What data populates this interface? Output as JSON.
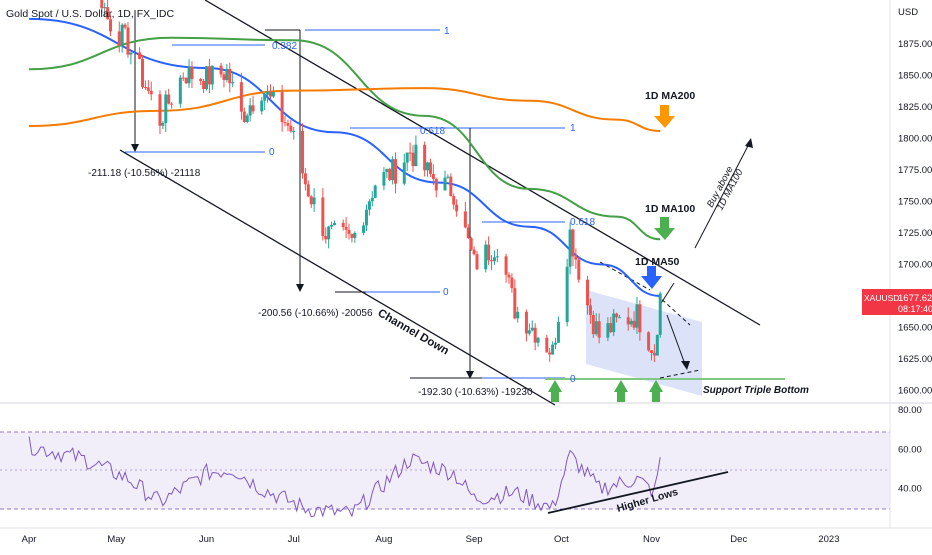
{
  "header": {
    "title": "Gold Spot / U.S. Dollar, 1D, FX_IDC"
  },
  "price_axis": {
    "unit_label": "USD",
    "ticks": [
      "1875.00",
      "1850.00",
      "1825.00",
      "1800.00",
      "1775.00",
      "1750.00",
      "1725.00",
      "1700.00",
      "1675.00",
      "1650.00",
      "1625.00",
      "1600.00"
    ]
  },
  "rsi_axis": {
    "ticks": [
      "80.00",
      "60.00",
      "40.00"
    ]
  },
  "time_axis": {
    "ticks": [
      "Apr",
      "May",
      "Jun",
      "Jul",
      "Aug",
      "Sep",
      "Oct",
      "Nov",
      "Dec",
      "2023"
    ]
  },
  "price_tag": {
    "symbol": "XAUUSD",
    "price": "1677.62",
    "countdown": "08:17:40"
  },
  "fib_labels": {
    "top_one": "1",
    "top_zero": "0",
    "top_382": "0.382",
    "top_measure": "-211.18 (-10.56%) -21118",
    "mid_one": "1",
    "mid_618": "0.618",
    "mid_zero": "0",
    "mid_measure": "-200.56 (-10.66%) -20056",
    "low_one": "1",
    "low_618": "0.618",
    "low_zero": "0",
    "low_measure": "-192.30 (-10.63%) -19230"
  },
  "annotations": {
    "ma200": "1D MA200",
    "ma100": "1D MA100",
    "ma50": "1D MA50",
    "channel_down": "Channel Down",
    "buy_above_line1": "Buy above",
    "buy_above_line2": "1D MA100",
    "support": "Support Triple Bottom",
    "higher_lows": "Higher Lows"
  },
  "colors": {
    "up": "#26a69a",
    "down": "#ef5350",
    "ma50": "#2962ff",
    "ma100": "#43a047",
    "ma200": "#f57c00",
    "rsi": "#7e57c2",
    "fib": "#2962ff",
    "arrow_green": "#4caf50",
    "arrow_blue": "#2962ff",
    "arrow_orange": "#ff9800",
    "price_tag": "#f23645"
  },
  "chart_data": {
    "type": "candlestick",
    "title": "Gold Spot / U.S. Dollar, 1D, FX_IDC",
    "ylabel": "USD",
    "ylim": [
      1590,
      1910
    ],
    "x_range": [
      "2022-03-22",
      "2023-01-22"
    ],
    "close_series_approx": [
      {
        "date": "2022-04-01",
        "close": 1925
      },
      {
        "date": "2022-04-18",
        "close": 1975
      },
      {
        "date": "2022-04-28",
        "close": 1895
      },
      {
        "date": "2022-05-05",
        "close": 1875
      },
      {
        "date": "2022-05-16",
        "close": 1815
      },
      {
        "date": "2022-05-24",
        "close": 1852
      },
      {
        "date": "2022-06-01",
        "close": 1848
      },
      {
        "date": "2022-06-08",
        "close": 1853
      },
      {
        "date": "2022-06-13",
        "close": 1818
      },
      {
        "date": "2022-06-20",
        "close": 1840
      },
      {
        "date": "2022-06-30",
        "close": 1807
      },
      {
        "date": "2022-07-05",
        "close": 1765
      },
      {
        "date": "2022-07-12",
        "close": 1725
      },
      {
        "date": "2022-07-21",
        "close": 1718
      },
      {
        "date": "2022-07-29",
        "close": 1765
      },
      {
        "date": "2022-08-05",
        "close": 1775
      },
      {
        "date": "2022-08-10",
        "close": 1790
      },
      {
        "date": "2022-08-17",
        "close": 1770
      },
      {
        "date": "2022-08-25",
        "close": 1758
      },
      {
        "date": "2022-09-01",
        "close": 1700
      },
      {
        "date": "2022-09-09",
        "close": 1717
      },
      {
        "date": "2022-09-15",
        "close": 1665
      },
      {
        "date": "2022-09-23",
        "close": 1645
      },
      {
        "date": "2022-09-28",
        "close": 1630
      },
      {
        "date": "2022-10-04",
        "close": 1725
      },
      {
        "date": "2022-10-10",
        "close": 1668
      },
      {
        "date": "2022-10-14",
        "close": 1643
      },
      {
        "date": "2022-10-21",
        "close": 1655
      },
      {
        "date": "2022-10-27",
        "close": 1660
      },
      {
        "date": "2022-11-02",
        "close": 1632
      },
      {
        "date": "2022-11-04",
        "close": 1677
      }
    ],
    "moving_averages": [
      {
        "name": "1D MA50",
        "values": [
          {
            "date": "2022-04-01",
            "value": 1895
          },
          {
            "date": "2022-06-01",
            "value": 1856
          },
          {
            "date": "2022-07-15",
            "value": 1805
          },
          {
            "date": "2022-08-20",
            "value": 1765
          },
          {
            "date": "2022-09-20",
            "value": 1730
          },
          {
            "date": "2022-10-15",
            "value": 1700
          },
          {
            "date": "2022-11-04",
            "value": 1675
          }
        ]
      },
      {
        "name": "1D MA100",
        "values": [
          {
            "date": "2022-04-01",
            "value": 1855
          },
          {
            "date": "2022-05-20",
            "value": 1880
          },
          {
            "date": "2022-07-01",
            "value": 1878
          },
          {
            "date": "2022-08-15",
            "value": 1818
          },
          {
            "date": "2022-09-20",
            "value": 1760
          },
          {
            "date": "2022-10-20",
            "value": 1738
          },
          {
            "date": "2022-11-04",
            "value": 1720
          }
        ]
      },
      {
        "name": "1D MA200",
        "values": [
          {
            "date": "2022-04-01",
            "value": 1810
          },
          {
            "date": "2022-05-15",
            "value": 1822
          },
          {
            "date": "2022-07-01",
            "value": 1838
          },
          {
            "date": "2022-08-15",
            "value": 1840
          },
          {
            "date": "2022-09-20",
            "value": 1830
          },
          {
            "date": "2022-10-20",
            "value": 1815
          },
          {
            "date": "2022-11-04",
            "value": 1806
          }
        ]
      }
    ],
    "fib_levels": [
      {
        "level": "1",
        "price": 1887
      },
      {
        "level": "0.382",
        "price": 1872
      },
      {
        "level": "0",
        "price": 1798
      },
      {
        "level": "1",
        "price": 1807
      },
      {
        "level": "0.618",
        "price": 1726
      },
      {
        "level": "0",
        "price": 1690
      },
      {
        "level": "0.618",
        "price": 1730
      },
      {
        "level": "0",
        "price": 1615
      }
    ],
    "rsi": {
      "ylim": [
        20,
        80
      ],
      "ticks": [
        80,
        60,
        40
      ],
      "band": [
        30,
        70
      ],
      "values_approx": [
        {
          "date": "2022-04-01",
          "value": 62
        },
        {
          "date": "2022-04-20",
          "value": 55
        },
        {
          "date": "2022-05-05",
          "value": 45
        },
        {
          "date": "2022-05-16",
          "value": 33
        },
        {
          "date": "2022-06-01",
          "value": 48
        },
        {
          "date": "2022-06-10",
          "value": 50
        },
        {
          "date": "2022-06-20",
          "value": 40
        },
        {
          "date": "2022-07-05",
          "value": 30
        },
        {
          "date": "2022-07-21",
          "value": 27
        },
        {
          "date": "2022-08-10",
          "value": 55
        },
        {
          "date": "2022-08-25",
          "value": 48
        },
        {
          "date": "2022-09-01",
          "value": 35
        },
        {
          "date": "2022-09-15",
          "value": 38
        },
        {
          "date": "2022-09-28",
          "value": 30
        },
        {
          "date": "2022-10-04",
          "value": 57
        },
        {
          "date": "2022-10-14",
          "value": 40
        },
        {
          "date": "2022-10-27",
          "value": 45
        },
        {
          "date": "2022-11-02",
          "value": 38
        },
        {
          "date": "2022-11-04",
          "value": 56
        }
      ]
    }
  }
}
